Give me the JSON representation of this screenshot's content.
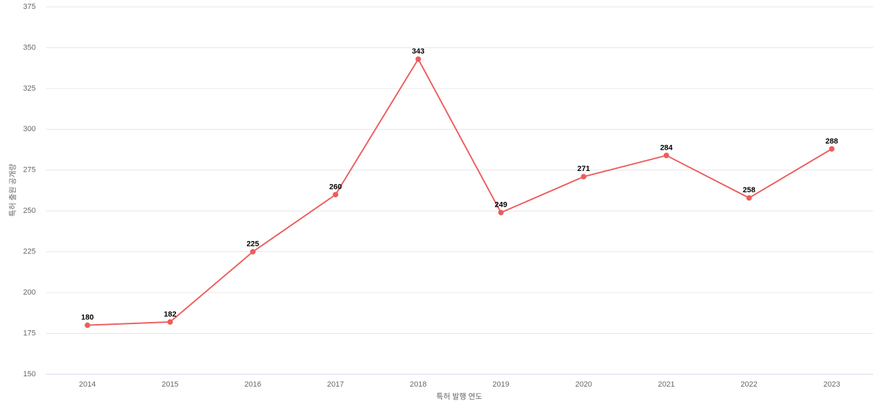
{
  "chart_data": {
    "type": "line",
    "x_label": "특허 발행 연도",
    "y_label": "특허 출원 공개량",
    "categories": [
      "2014",
      "2015",
      "2016",
      "2017",
      "2018",
      "2019",
      "2020",
      "2021",
      "2022",
      "2023"
    ],
    "series": [
      {
        "color": "#ee5c5c",
        "values": [
          180,
          182,
          225,
          260,
          343,
          249,
          271,
          284,
          258,
          288
        ]
      }
    ],
    "ylim": [
      150,
      375
    ],
    "yticks": [
      150,
      175,
      200,
      225,
      250,
      275,
      300,
      325,
      350,
      375
    ],
    "grid": true,
    "data_labels": true
  }
}
